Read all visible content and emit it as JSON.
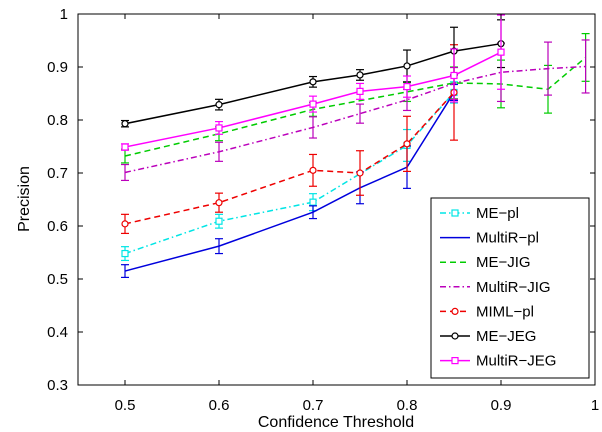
{
  "chart_data": {
    "type": "line",
    "xlabel": "Confidence Threshold",
    "ylabel": "Precision",
    "xlim": [
      0.45,
      1.0
    ],
    "ylim": [
      0.3,
      1.0
    ],
    "xticks": [
      0.5,
      0.6,
      0.7,
      0.8,
      0.9,
      1.0
    ],
    "xtick_labels": [
      "0.5",
      "0.6",
      "0.7",
      "0.8",
      "0.9",
      "1"
    ],
    "yticks": [
      0.3,
      0.4,
      0.5,
      0.6,
      0.7,
      0.8,
      0.9,
      1.0
    ],
    "ytick_labels": [
      "0.3",
      "0.4",
      "0.5",
      "0.6",
      "0.7",
      "0.8",
      "0.9",
      "1"
    ],
    "grid": false,
    "legend_position": "bottom-right",
    "series": [
      {
        "name": "ME−pl",
        "color": "#00e5e5",
        "dash": "dashdot",
        "marker": "square",
        "x": [
          0.5,
          0.6,
          0.7,
          0.8,
          0.85
        ],
        "y": [
          0.548,
          0.609,
          0.645,
          0.752,
          0.852
        ],
        "err": [
          0.013,
          0.013,
          0.016,
          0.03,
          0.02
        ]
      },
      {
        "name": "MultiR−pl",
        "color": "#0000dd",
        "dash": "solid",
        "marker": "none",
        "x": [
          0.5,
          0.6,
          0.7,
          0.75,
          0.8,
          0.85
        ],
        "y": [
          0.515,
          0.562,
          0.626,
          0.672,
          0.711,
          0.852
        ],
        "err": [
          0.012,
          0.014,
          0.012,
          0.03,
          0.04,
          0.015
        ]
      },
      {
        "name": "ME−JIG",
        "color": "#00cc00",
        "dash": "dashed",
        "marker": "none",
        "x": [
          0.5,
          0.6,
          0.7,
          0.8,
          0.85,
          0.9,
          0.95,
          0.99
        ],
        "y": [
          0.732,
          0.774,
          0.82,
          0.853,
          0.87,
          0.868,
          0.858,
          0.918
        ],
        "err": [
          0.013,
          0.013,
          0.013,
          0.018,
          0.03,
          0.045,
          0.045,
          0.045
        ]
      },
      {
        "name": "MultiR−JIG",
        "color": "#bb00bb",
        "dash": "dashdot",
        "marker": "none",
        "x": [
          0.5,
          0.6,
          0.7,
          0.75,
          0.8,
          0.85,
          0.9,
          0.95,
          0.99
        ],
        "y": [
          0.701,
          0.74,
          0.786,
          0.812,
          0.838,
          0.869,
          0.89,
          0.897,
          0.901
        ],
        "err": [
          0.015,
          0.018,
          0.02,
          0.018,
          0.02,
          0.03,
          0.055,
          0.05,
          0.05
        ]
      },
      {
        "name": "MIML−pl",
        "color": "#ee0000",
        "dash": "dashed",
        "marker": "circle",
        "x": [
          0.5,
          0.6,
          0.7,
          0.75,
          0.8,
          0.85
        ],
        "y": [
          0.604,
          0.644,
          0.705,
          0.7,
          0.755,
          0.852
        ],
        "err": [
          0.018,
          0.018,
          0.03,
          0.042,
          0.052,
          0.09
        ]
      },
      {
        "name": "ME−JEG",
        "color": "#000000",
        "dash": "solid",
        "marker": "circle",
        "x": [
          0.5,
          0.6,
          0.7,
          0.75,
          0.8,
          0.85,
          0.9
        ],
        "y": [
          0.793,
          0.829,
          0.872,
          0.885,
          0.902,
          0.93,
          0.944
        ],
        "err": [
          0.006,
          0.01,
          0.01,
          0.01,
          0.03,
          0.045,
          0.045
        ]
      },
      {
        "name": "MultiR−JEG",
        "color": "#ff00ff",
        "dash": "solid",
        "marker": "square",
        "x": [
          0.5,
          0.6,
          0.7,
          0.75,
          0.8,
          0.85,
          0.9
        ],
        "y": [
          0.749,
          0.785,
          0.83,
          0.854,
          0.863,
          0.884,
          0.928
        ],
        "err": [
          0.006,
          0.012,
          0.015,
          0.015,
          0.02,
          0.05,
          0.07
        ]
      }
    ]
  }
}
